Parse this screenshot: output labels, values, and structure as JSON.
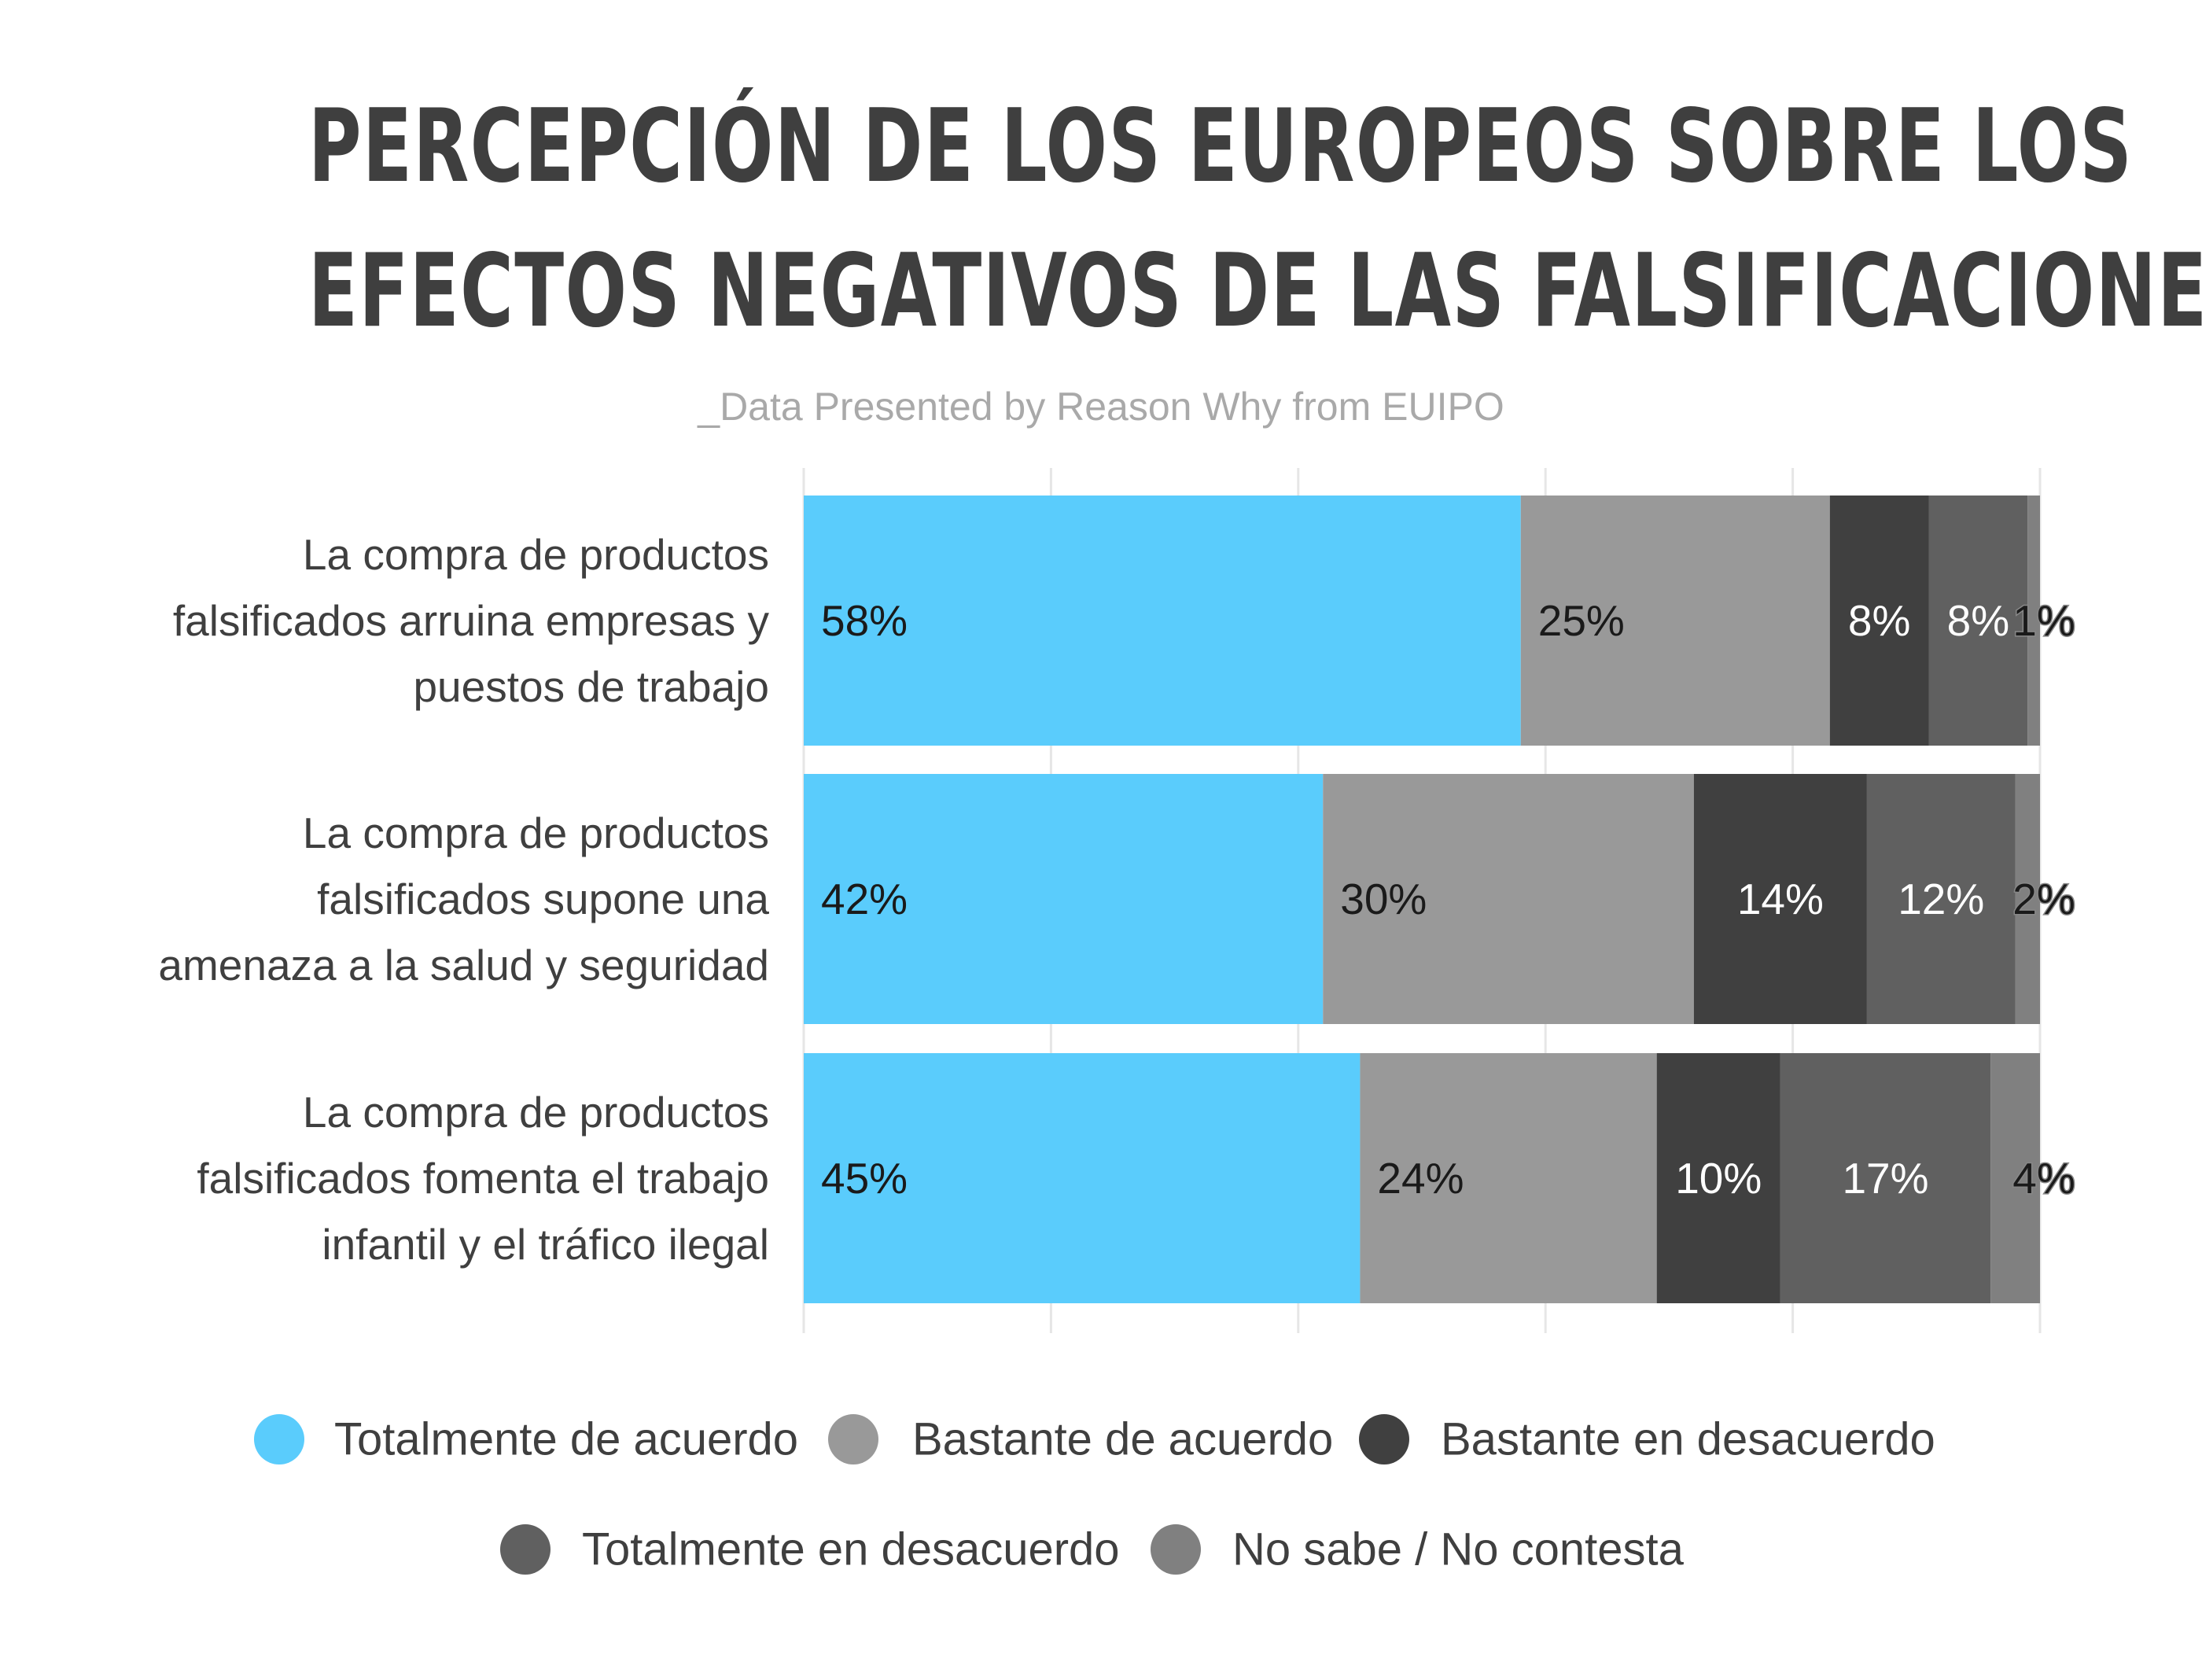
{
  "header": {
    "title_line1": "PERCEPCIÓN DE LOS EUROPEOS SOBRE LOS",
    "title_line2": "EFECTOS NEGATIVOS DE LAS FALSIFICACIONES",
    "subtitle": "_Data Presented by Reason Why from EUIPO"
  },
  "chart_data": {
    "type": "bar",
    "orientation": "horizontal",
    "stacked": true,
    "title": "PERCEPCIÓN DE LOS EUROPEOS SOBRE LOS EFECTOS NEGATIVOS DE LAS FALSIFICACIONES",
    "subtitle": "_Data Presented by Reason Why from EUIPO",
    "categories": [
      [
        "La compra de productos",
        "falsificados arruina empresas y",
        "puestos de trabajo"
      ],
      [
        "La compra de productos",
        "falsificados supone una",
        "amenaza a la salud y seguridad"
      ],
      [
        "La compra de productos",
        "falsificados fomenta el trabajo",
        "infantil y el tráfico ilegal"
      ]
    ],
    "series": [
      {
        "name": "Totalmente de acuerdo",
        "color": "#5accfc",
        "label_color": "#1a1a1a",
        "values": [
          58,
          42,
          45
        ],
        "labels": [
          "58%",
          "42%",
          "45%"
        ]
      },
      {
        "name": "Bastante de acuerdo",
        "color": "#999999",
        "label_color": "#1a1a1a",
        "values": [
          25,
          30,
          24
        ],
        "labels": [
          "25%",
          "30%",
          "24%"
        ]
      },
      {
        "name": "Bastante en desacuerdo",
        "color": "#404040",
        "label_color": "#ffffff",
        "values": [
          8,
          14,
          10
        ],
        "labels": [
          "8%",
          "14%",
          "10%"
        ]
      },
      {
        "name": "Totalmente en desacuerdo",
        "color": "#606060",
        "label_color": "#ffffff",
        "values": [
          8,
          12,
          17
        ],
        "labels": [
          "8%",
          "12%",
          "17%"
        ]
      },
      {
        "name": "No sabe / No contesta",
        "color": "#808080",
        "label_color": "#1a1a1a",
        "values": [
          1,
          2,
          4
        ],
        "labels": [
          "1%",
          "2%",
          "4%"
        ]
      }
    ],
    "xlim": [
      0,
      100
    ],
    "grid": true,
    "legend_position": "bottom"
  }
}
